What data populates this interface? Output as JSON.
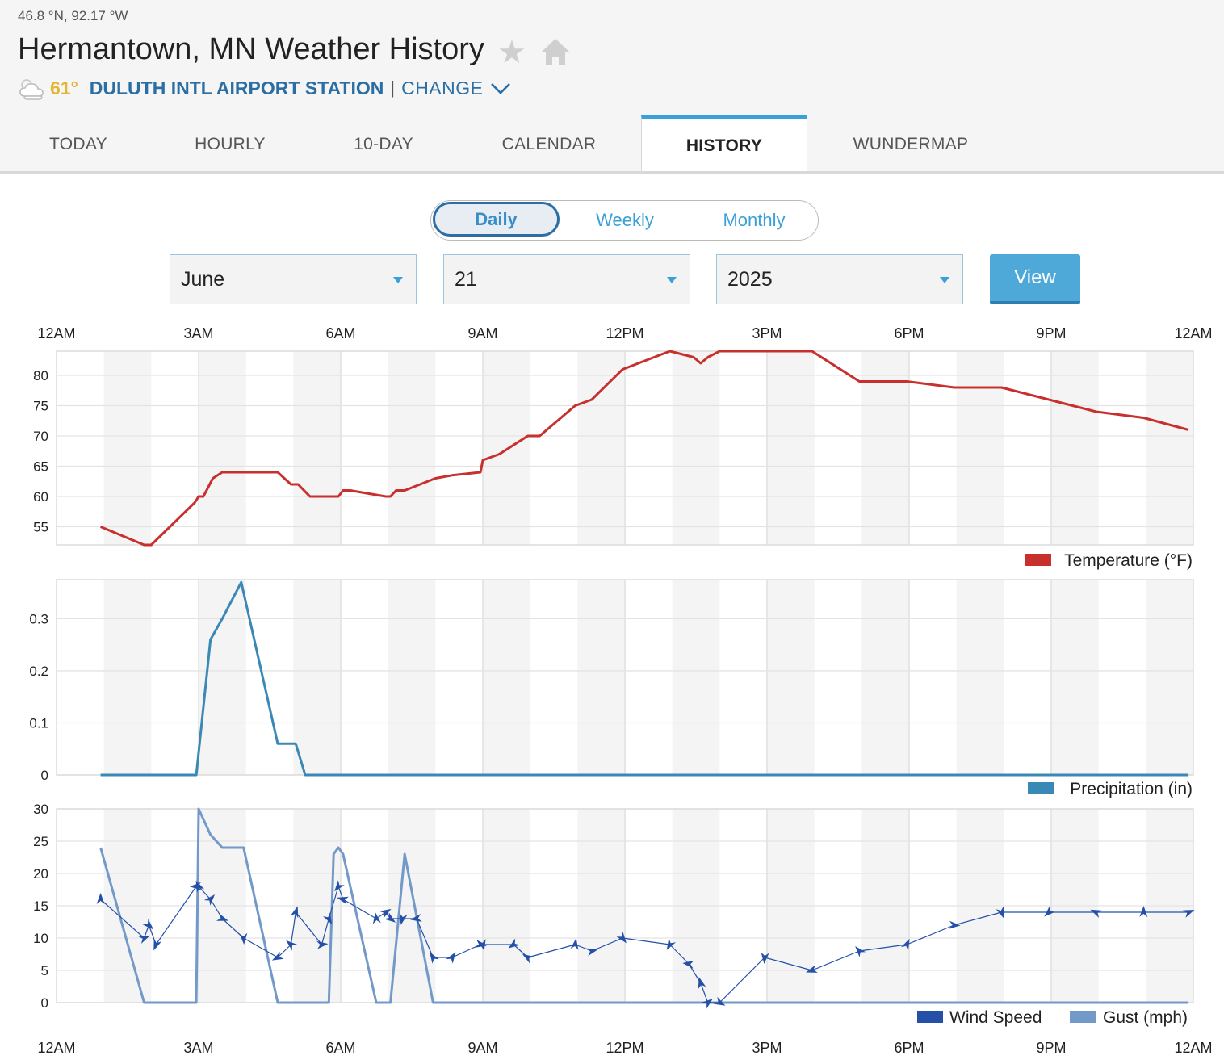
{
  "header": {
    "coordinates": "46.8 °N, 92.17 °W",
    "title": "Hermantown, MN Weather History",
    "current_temp": "61°",
    "station_name": "DULUTH INTL AIRPORT STATION",
    "separator": "|",
    "change_label": "CHANGE",
    "star_icon": "star-icon",
    "home_icon": "home-icon",
    "weather_icon": "partly-cloudy-icon"
  },
  "tabs": [
    {
      "label": "TODAY"
    },
    {
      "label": "HOURLY"
    },
    {
      "label": "10-DAY"
    },
    {
      "label": "CALENDAR"
    },
    {
      "label": "HISTORY",
      "active": true
    },
    {
      "label": "WUNDERMAP"
    }
  ],
  "period_toggle": {
    "options": [
      "Daily",
      "Weekly",
      "Monthly"
    ],
    "selected": "Daily"
  },
  "date_selectors": {
    "month": "June",
    "day": "21",
    "year": "2025",
    "view_label": "View"
  },
  "time_axis": {
    "top_labels": [
      "12AM",
      "3AM",
      "6AM",
      "9AM",
      "12PM",
      "3PM",
      "6PM",
      "9PM",
      "12AM"
    ],
    "bottom_labels": [
      "12AM",
      "3AM",
      "6AM",
      "9AM",
      "12PM",
      "3PM",
      "6PM",
      "9PM",
      "12AM"
    ]
  },
  "colors": {
    "temperature": "#c8302e",
    "precipitation": "#3a88b6",
    "wind_speed": "#2550a8",
    "gust": "#7399c9",
    "accent": "#3aa0d8",
    "station": "#2a6ea3",
    "temp_badge": "#e5b531"
  },
  "chart_data": [
    {
      "type": "line",
      "ylim": [
        52,
        84
      ],
      "yticks": [
        "80",
        "75",
        "70",
        "65",
        "60",
        "55"
      ],
      "x_unit": "hours since 12AM",
      "series": [
        {
          "name": "Temperature (°F)",
          "x": [
            0.93,
            1.85,
            2.0,
            2.92,
            3.0,
            3.1,
            3.3,
            3.5,
            4.0,
            4.67,
            4.95,
            5.1,
            5.35,
            5.95,
            6.05,
            6.2,
            6.95,
            7.05,
            7.17,
            7.35,
            8.0,
            8.35,
            8.95,
            9.0,
            9.35,
            9.95,
            10.2,
            10.95,
            11.3,
            11.95,
            12.95,
            13.45,
            13.6,
            13.75,
            14.0,
            14.95,
            15.95,
            16.95,
            17.95,
            18.95,
            19.95,
            20.95,
            21.95,
            22.95,
            23.9
          ],
          "y": [
            55,
            52,
            52,
            59,
            60,
            60,
            63,
            64,
            64,
            64,
            62,
            62,
            60,
            60,
            61,
            61,
            60,
            60,
            61,
            61,
            63,
            63.5,
            64,
            66,
            67,
            70,
            70,
            75,
            76,
            81,
            84,
            83,
            82,
            83,
            84,
            84,
            84,
            79,
            79,
            78,
            78,
            76,
            74,
            73,
            71
          ]
        }
      ]
    },
    {
      "type": "line",
      "ylim": [
        0,
        0.375
      ],
      "yticks": [
        "0.3",
        "0.2",
        "0.1",
        "0"
      ],
      "x_unit": "hours since 12AM",
      "series": [
        {
          "name": "Precipitation (in)",
          "x": [
            0.93,
            1.95,
            2.95,
            3.25,
            3.5,
            3.9,
            4.67,
            4.95,
            5.05,
            5.25,
            23.9
          ],
          "y": [
            0,
            0,
            0,
            0.26,
            0.3,
            0.37,
            0.06,
            0.06,
            0.06,
            0,
            0
          ]
        }
      ]
    },
    {
      "type": "line",
      "ylim": [
        0,
        30
      ],
      "yticks": [
        "30",
        "25",
        "20",
        "15",
        "10",
        "5",
        "0"
      ],
      "x_unit": "hours since 12AM",
      "series": [
        {
          "name": "Wind Speed",
          "x": [
            0.93,
            1.85,
            1.95,
            2.1,
            2.95,
            3.0,
            3.25,
            3.5,
            3.95,
            4.67,
            4.95,
            5.05,
            5.6,
            5.75,
            5.95,
            6.05,
            6.75,
            6.95,
            7.05,
            7.3,
            7.6,
            7.95,
            8.35,
            8.95,
            9.0,
            9.65,
            9.95,
            10.95,
            11.3,
            11.95,
            12.95,
            13.35,
            13.6,
            13.75,
            14.0,
            14.95,
            15.95,
            16.95,
            17.95,
            18.95,
            19.95,
            20.95,
            21.95,
            22.95,
            23.9
          ],
          "y": [
            16,
            10,
            12,
            9,
            18,
            18,
            16,
            13,
            10,
            7,
            9,
            14,
            9,
            13,
            18,
            16,
            13,
            14,
            13,
            13,
            13,
            7,
            7,
            9,
            9,
            9,
            7,
            9,
            8,
            10,
            9,
            6,
            3,
            0,
            0,
            7,
            5,
            8,
            9,
            12,
            14,
            14,
            14,
            14,
            14
          ]
        },
        {
          "name": "Gust (mph)",
          "x": [
            0.93,
            1.85,
            2.95,
            3.0,
            3.25,
            3.5,
            3.95,
            4.67,
            5.75,
            5.85,
            5.95,
            6.05,
            6.75,
            7.05,
            7.35,
            7.95,
            23.9
          ],
          "y": [
            24,
            0,
            0,
            30,
            26,
            24,
            24,
            0,
            0,
            23,
            24,
            23,
            0,
            0,
            23,
            0,
            0
          ]
        }
      ]
    }
  ]
}
